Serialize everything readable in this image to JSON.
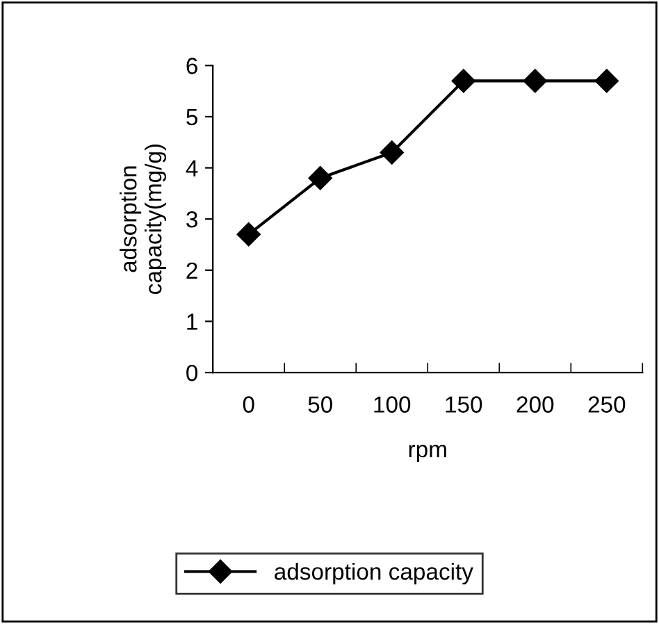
{
  "chart_data": {
    "type": "line",
    "xlabel": "rpm",
    "ylabel": "adsorption\ncapacity(mg/g)",
    "categories": [
      "0",
      "50",
      "100",
      "150",
      "200",
      "250"
    ],
    "series": [
      {
        "name": "adsorption capacity",
        "color": "#000000",
        "values": [
          2.7,
          3.8,
          4.3,
          5.7,
          5.7,
          5.7
        ]
      }
    ],
    "ylim": [
      0,
      6
    ],
    "yticks": [
      0,
      1,
      2,
      3,
      4,
      5,
      6
    ],
    "marker": "diamond",
    "line_style": "solid",
    "grid": false,
    "legend": "bottom"
  }
}
